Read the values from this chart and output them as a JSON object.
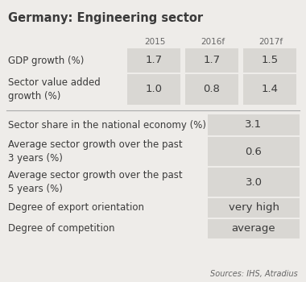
{
  "title": "Germany: Engineering sector",
  "fig_bg": "#eeece9",
  "cell_bg": "#d9d7d3",
  "header_years": [
    "2015",
    "2016f",
    "2017f"
  ],
  "top_rows": [
    {
      "label": "GDP growth (%)",
      "values": [
        "1.7",
        "1.7",
        "1.5"
      ]
    },
    {
      "label": "Sector value added\ngrowth (%)",
      "values": [
        "1.0",
        "0.8",
        "1.4"
      ]
    }
  ],
  "bottom_rows": [
    {
      "label": "Sector share in the national economy (%)",
      "value": "3.1"
    },
    {
      "label": "Average sector growth over the past\n3 years (%)",
      "value": "0.6"
    },
    {
      "label": "Average sector growth over the past\n5 years (%)",
      "value": "3.0"
    },
    {
      "label": "Degree of export orientation",
      "value": "very high"
    },
    {
      "label": "Degree of competition",
      "value": "average"
    }
  ],
  "source_text": "Sources: IHS, Atradius",
  "title_fontsize": 10.5,
  "label_fontsize": 8.5,
  "value_fontsize": 9.5,
  "header_fontsize": 7.5,
  "source_fontsize": 7
}
